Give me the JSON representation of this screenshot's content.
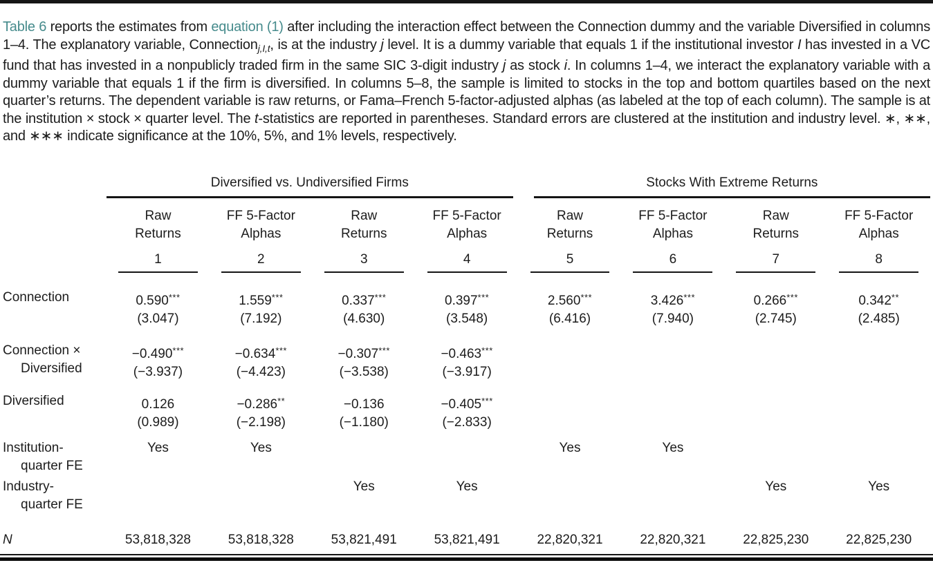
{
  "colors": {
    "link_teal": "#468b8c",
    "rule_black": "#141414",
    "text": "#1c1c1c"
  },
  "caption": {
    "segments": [
      {
        "t": "Table 6",
        "s": "link"
      },
      {
        "t": " reports the estimates from ",
        "s": "text"
      },
      {
        "t": "equation (1)",
        "s": "link"
      },
      {
        "t": " after including the interaction effect between the Connection dummy and the variable Diversified in columns 1–4. The explanatory variable, Connection",
        "s": "text"
      },
      {
        "t": "j,I,t",
        "s": "subitalic"
      },
      {
        "t": ", is at the industry ",
        "s": "text"
      },
      {
        "t": "j",
        "s": "italic"
      },
      {
        "t": " level. It is a dummy variable that equals 1 if the institutional investor ",
        "s": "text"
      },
      {
        "t": "I",
        "s": "italic"
      },
      {
        "t": " has invested in a VC fund that has invested in a nonpublicly traded firm in the same SIC 3-digit industry ",
        "s": "text"
      },
      {
        "t": "j",
        "s": "italic"
      },
      {
        "t": " as stock ",
        "s": "text"
      },
      {
        "t": "i",
        "s": "italic"
      },
      {
        "t": ". In columns 1–4, we interact the explanatory variable with a dummy variable that equals 1 if the firm is diversified. In columns 5–8, the sample is limited to stocks in the top and bottom quartiles based on the next quarter’s returns. The dependent variable is raw returns, or Fama–French 5-factor-adjusted alphas (as labeled at the top of each column). The sample is at the institution × stock × quarter level. The ",
        "s": "text"
      },
      {
        "t": "t",
        "s": "italic"
      },
      {
        "t": "-statistics are reported in parentheses. Standard errors are clustered at the institution and industry level. ∗, ∗∗, and ∗∗∗ indicate significance at the 10%, 5%, and 1% levels, respectively.",
        "s": "text"
      }
    ]
  },
  "table": {
    "groups": [
      {
        "label": "Diversified vs. Undiversified Firms"
      },
      {
        "label": "Stocks With Extreme Returns"
      }
    ],
    "columns": [
      {
        "line1": "Raw",
        "line2": "Returns",
        "num": "1"
      },
      {
        "line1": "FF 5-Factor",
        "line2": "Alphas",
        "num": "2"
      },
      {
        "line1": "Raw",
        "line2": "Returns",
        "num": "3"
      },
      {
        "line1": "FF 5-Factor",
        "line2": "Alphas",
        "num": "4"
      },
      {
        "line1": "Raw",
        "line2": "Returns",
        "num": "5"
      },
      {
        "line1": "FF 5-Factor",
        "line2": "Alphas",
        "num": "6"
      },
      {
        "line1": "Raw",
        "line2": "Returns",
        "num": "7"
      },
      {
        "line1": "FF 5-Factor",
        "line2": "Alphas",
        "num": "8"
      }
    ],
    "rows": {
      "connection": {
        "label": "Connection",
        "cells": [
          {
            "est": "0.590",
            "stars": "***",
            "t": "(3.047)"
          },
          {
            "est": "1.559",
            "stars": "***",
            "t": "(7.192)"
          },
          {
            "est": "0.337",
            "stars": "***",
            "t": "(4.630)"
          },
          {
            "est": "0.397",
            "stars": "***",
            "t": "(3.548)"
          },
          {
            "est": "2.560",
            "stars": "***",
            "t": "(6.416)"
          },
          {
            "est": "3.426",
            "stars": "***",
            "t": "(7.940)"
          },
          {
            "est": "0.266",
            "stars": "***",
            "t": "(2.745)"
          },
          {
            "est": "0.342",
            "stars": "**",
            "t": "(2.485)"
          }
        ]
      },
      "connection_diversified": {
        "label1": "Connection ×",
        "label2": "Diversified",
        "cells": [
          {
            "est": "−0.490",
            "stars": "***",
            "t": "(−3.937)"
          },
          {
            "est": "−0.634",
            "stars": "***",
            "t": "(−4.423)"
          },
          {
            "est": "−0.307",
            "stars": "***",
            "t": "(−3.538)"
          },
          {
            "est": "−0.463",
            "stars": "***",
            "t": "(−3.917)"
          }
        ]
      },
      "diversified": {
        "label": "Diversified",
        "cells": [
          {
            "est": "0.126",
            "stars": "",
            "t": "(0.989)"
          },
          {
            "est": "−0.286",
            "stars": "**",
            "t": "(−2.198)"
          },
          {
            "est": "−0.136",
            "stars": "",
            "t": "(−1.180)"
          },
          {
            "est": "−0.405",
            "stars": "***",
            "t": "(−2.833)"
          }
        ]
      },
      "institution_fe": {
        "label1": "Institution-",
        "label2": "quarter FE",
        "values": [
          "Yes",
          "Yes",
          "",
          "",
          "Yes",
          "Yes",
          "",
          ""
        ]
      },
      "industry_fe": {
        "label1": "Industry-",
        "label2": "quarter FE",
        "values": [
          "",
          "",
          "Yes",
          "Yes",
          "",
          "",
          "Yes",
          "Yes"
        ]
      },
      "n": {
        "label": "N",
        "values": [
          "53,818,328",
          "53,818,328",
          "53,821,491",
          "53,821,491",
          "22,820,321",
          "22,820,321",
          "22,825,230",
          "22,825,230"
        ]
      }
    }
  }
}
